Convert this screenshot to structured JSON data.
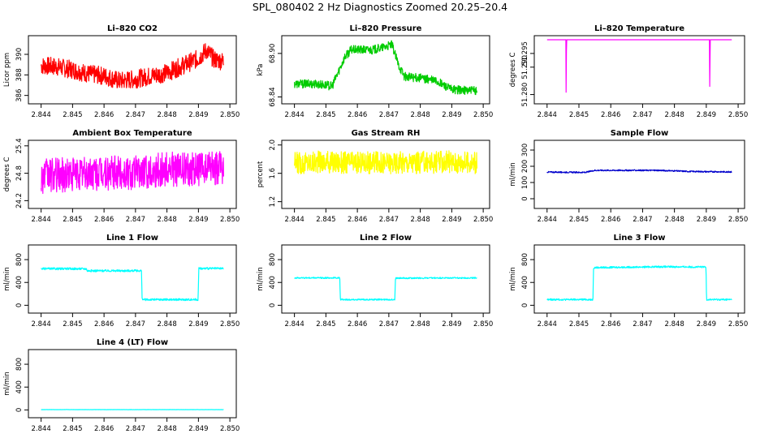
{
  "page": {
    "title": "SPL_080402  2 Hz Diagnostics Zoomed 20.25–20.4"
  },
  "chart_data": [
    {
      "id": "co2",
      "type": "line",
      "title": "Li–820 CO2",
      "ylabel": "Licor ppm",
      "color": "#ff0000",
      "xlim": [
        2.8437,
        2.8501
      ],
      "ylim": [
        385.5,
        391.5
      ],
      "xticks": [
        "2.844",
        "2.845",
        "2.846",
        "2.847",
        "2.848",
        "2.849",
        "2.850"
      ],
      "yticks": [
        "386",
        "388",
        "390"
      ],
      "series": [
        {
          "x": [
            2.8437,
            2.844,
            2.8445,
            2.845,
            2.8455,
            2.846,
            2.8465,
            2.847,
            2.8475,
            2.848,
            2.8485,
            2.849,
            2.84925,
            2.8495,
            2.85
          ],
          "values": [
            388.6,
            388.9,
            388.8,
            388.5,
            388.1,
            387.9,
            387.4,
            387.6,
            387.9,
            388.2,
            388.9,
            389.6,
            390.4,
            389.5,
            389.2
          ],
          "noise": 0.9
        }
      ]
    },
    {
      "id": "pressure",
      "type": "line",
      "title": "Li–820 Pressure",
      "ylabel": "kPa",
      "color": "#00cc00",
      "xlim": [
        2.8437,
        2.8501
      ],
      "ylim": [
        68.835,
        68.92
      ],
      "xticks": [
        "2.844",
        "2.845",
        "2.846",
        "2.847",
        "2.848",
        "2.849",
        "2.850"
      ],
      "yticks": [
        "68.84",
        "68.90"
      ],
      "series": [
        {
          "x": [
            2.8437,
            2.8447,
            2.8452,
            2.8454,
            2.8456,
            2.8458,
            2.8465,
            2.8468,
            2.8471,
            2.8473,
            2.8475,
            2.848,
            2.8485,
            2.849,
            2.85
          ],
          "values": [
            68.858,
            68.858,
            68.855,
            68.875,
            68.895,
            68.905,
            68.905,
            68.908,
            68.912,
            68.885,
            68.868,
            68.866,
            68.862,
            68.85,
            68.848
          ],
          "noise": 0.006
        }
      ]
    },
    {
      "id": "li820temp",
      "type": "line",
      "title": "Li–820 Temperature",
      "ylabel": "degrees C",
      "color": "#ff00ff",
      "xlim": [
        2.8437,
        2.8501
      ],
      "ylim": [
        51.2778,
        51.3003
      ],
      "xticks": [
        "2.844",
        "2.845",
        "2.846",
        "2.847",
        "2.848",
        "2.849",
        "2.850"
      ],
      "yticks": [
        "51.280",
        "51.290",
        "51.295"
      ],
      "series": [
        {
          "x": [
            2.8437,
            2.84459,
            2.8446,
            2.84461,
            2.8491,
            2.84911,
            2.84912,
            2.85
          ],
          "values": [
            51.3,
            51.3,
            51.278,
            51.3,
            51.3,
            51.278,
            51.3,
            51.3
          ],
          "noise": 0
        }
      ]
    },
    {
      "id": "boxtemp",
      "type": "line",
      "title": "Ambient Box Temperature",
      "ylabel": "degrees C",
      "color": "#ff00ff",
      "xlim": [
        2.8437,
        2.8501
      ],
      "ylim": [
        24.1,
        25.45
      ],
      "xticks": [
        "2.844",
        "2.845",
        "2.846",
        "2.847",
        "2.848",
        "2.849",
        "2.850"
      ],
      "yticks": [
        "24.2",
        "24.8",
        "25.4"
      ],
      "series": [
        {
          "x": [
            2.8437,
            2.845,
            2.847,
            2.8478,
            2.849,
            2.85
          ],
          "values": [
            24.72,
            24.78,
            24.82,
            24.88,
            24.9,
            24.9
          ],
          "noise": 0.38
        }
      ]
    },
    {
      "id": "rh",
      "type": "line",
      "title": "Gas Stream RH",
      "ylabel": "percent",
      "color": "#ffff00",
      "xlim": [
        2.8437,
        2.8501
      ],
      "ylim": [
        1.15,
        2.02
      ],
      "xticks": [
        "2.844",
        "2.845",
        "2.846",
        "2.847",
        "2.848",
        "2.849",
        "2.850"
      ],
      "yticks": [
        "1.2",
        "1.6",
        "2.0"
      ],
      "series": [
        {
          "x": [
            2.8437,
            2.845,
            2.847,
            2.849,
            2.85
          ],
          "values": [
            1.74,
            1.76,
            1.75,
            1.76,
            1.74
          ],
          "noise": 0.16
        }
      ]
    },
    {
      "id": "sampleflow",
      "type": "line",
      "title": "Sample Flow",
      "ylabel": "ml/min",
      "color": "#0000cc",
      "xlim": [
        2.8437,
        2.8501
      ],
      "ylim": [
        -40,
        340
      ],
      "xticks": [
        "2.844",
        "2.845",
        "2.846",
        "2.847",
        "2.848",
        "2.849",
        "2.850"
      ],
      "yticks": [
        "0",
        "100",
        "200",
        "300"
      ],
      "series": [
        {
          "x": [
            2.8437,
            2.8452,
            2.8455,
            2.8475,
            2.8485,
            2.85
          ],
          "values": [
            165,
            162,
            175,
            175,
            168,
            165
          ],
          "noise": 4
        }
      ]
    },
    {
      "id": "line1",
      "type": "line",
      "title": "Line 1 Flow",
      "ylabel": "ml/min",
      "color": "#00ffff",
      "xlim": [
        2.8437,
        2.8501
      ],
      "ylim": [
        -80,
        1000
      ],
      "xticks": [
        "2.844",
        "2.845",
        "2.846",
        "2.847",
        "2.848",
        "2.849",
        "2.850"
      ],
      "yticks": [
        "0",
        "400",
        "800"
      ],
      "series": [
        {
          "x": [
            2.8437,
            2.84544,
            2.84546,
            2.84719,
            2.84721,
            2.84899,
            2.84901,
            2.85
          ],
          "values": [
            640,
            640,
            605,
            605,
            100,
            100,
            645,
            645
          ],
          "noise": 18
        }
      ]
    },
    {
      "id": "line2",
      "type": "line",
      "title": "Line 2 Flow",
      "ylabel": "ml/min",
      "color": "#00ffff",
      "xlim": [
        2.8437,
        2.8501
      ],
      "ylim": [
        -80,
        1000
      ],
      "xticks": [
        "2.844",
        "2.845",
        "2.846",
        "2.847",
        "2.848",
        "2.849",
        "2.850"
      ],
      "yticks": [
        "0",
        "400",
        "800"
      ],
      "series": [
        {
          "x": [
            2.8437,
            2.84544,
            2.84546,
            2.84719,
            2.84721,
            2.85
          ],
          "values": [
            480,
            480,
            100,
            100,
            475,
            480
          ],
          "noise": 12
        }
      ]
    },
    {
      "id": "line3",
      "type": "line",
      "title": "Line 3 Flow",
      "ylabel": "ml/min",
      "color": "#00ffff",
      "xlim": [
        2.8437,
        2.8501
      ],
      "ylim": [
        -80,
        1000
      ],
      "xticks": [
        "2.844",
        "2.845",
        "2.846",
        "2.847",
        "2.848",
        "2.849",
        "2.850"
      ],
      "yticks": [
        "0",
        "400",
        "800"
      ],
      "series": [
        {
          "x": [
            2.8437,
            2.84544,
            2.84546,
            2.8475,
            2.84899,
            2.84901,
            2.85
          ],
          "values": [
            100,
            100,
            660,
            675,
            670,
            100,
            100
          ],
          "noise": 15
        }
      ]
    },
    {
      "id": "line4",
      "type": "line",
      "title": "Line 4 (LT) Flow",
      "ylabel": "ml/min",
      "color": "#00ffff",
      "xlim": [
        2.8437,
        2.8501
      ],
      "ylim": [
        -80,
        1000
      ],
      "xticks": [
        "2.844",
        "2.845",
        "2.846",
        "2.847",
        "2.848",
        "2.849",
        "2.850"
      ],
      "yticks": [
        "0",
        "400",
        "800"
      ],
      "series": [
        {
          "x": [
            2.8437,
            2.85
          ],
          "values": [
            5,
            5
          ],
          "noise": 2
        }
      ]
    }
  ]
}
